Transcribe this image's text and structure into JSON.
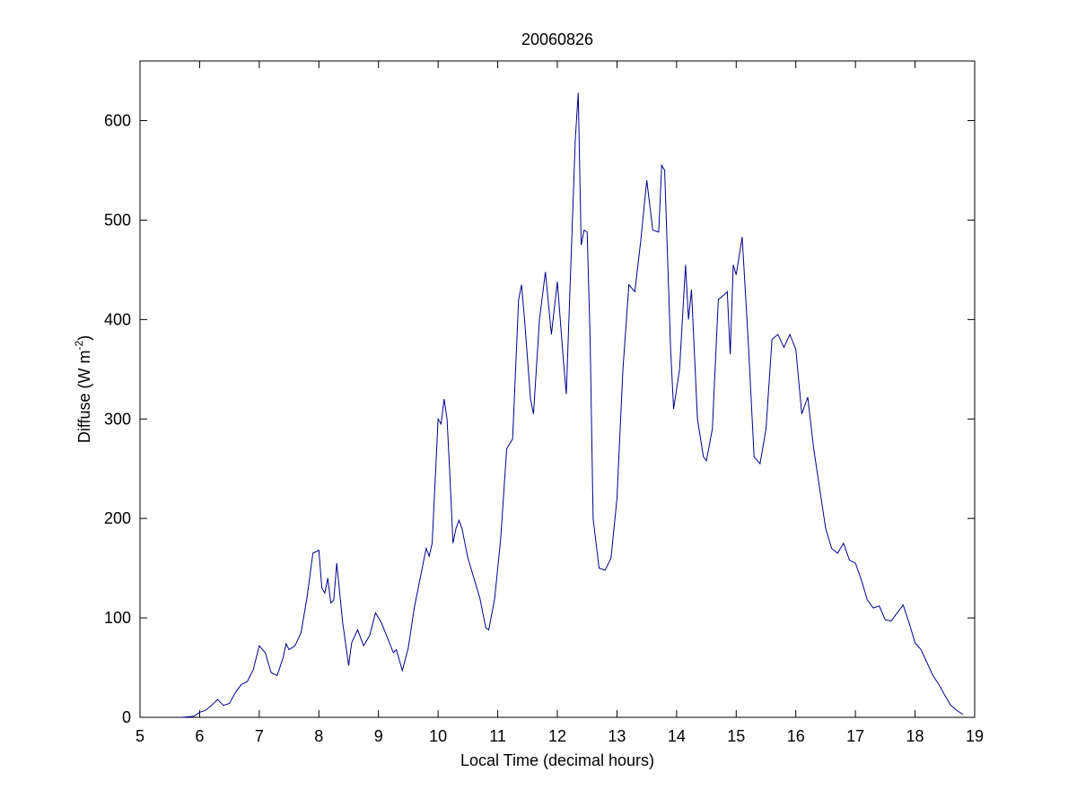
{
  "chart_data": {
    "type": "line",
    "title": "20060826",
    "xlabel": "Local Time (decimal hours)",
    "ylabel": [
      "Diffuse (W m",
      "-2",
      ")"
    ],
    "xlim": [
      5,
      19
    ],
    "xticks": [
      5,
      6,
      7,
      8,
      9,
      10,
      11,
      12,
      13,
      14,
      15,
      16,
      17,
      18,
      19
    ],
    "ylim": [
      0,
      660
    ],
    "yticks": [
      0,
      100,
      200,
      300,
      400,
      500,
      600
    ],
    "grid": false,
    "x": [
      5.7,
      5.9,
      6.0,
      6.1,
      6.2,
      6.3,
      6.4,
      6.5,
      6.6,
      6.7,
      6.8,
      6.9,
      7.0,
      7.1,
      7.2,
      7.3,
      7.4,
      7.45,
      7.5,
      7.6,
      7.7,
      7.8,
      7.9,
      8.0,
      8.05,
      8.1,
      8.15,
      8.2,
      8.25,
      8.3,
      8.35,
      8.4,
      8.5,
      8.55,
      8.65,
      8.75,
      8.85,
      8.95,
      9.05,
      9.15,
      9.25,
      9.3,
      9.4,
      9.5,
      9.6,
      9.7,
      9.8,
      9.85,
      9.9,
      10.0,
      10.05,
      10.1,
      10.15,
      10.2,
      10.25,
      10.3,
      10.35,
      10.4,
      10.5,
      10.6,
      10.7,
      10.8,
      10.85,
      10.95,
      11.05,
      11.15,
      11.25,
      11.35,
      11.4,
      11.45,
      11.55,
      11.6,
      11.7,
      11.8,
      11.9,
      12.0,
      12.1,
      12.15,
      12.3,
      12.35,
      12.4,
      12.45,
      12.5,
      12.55,
      12.6,
      12.7,
      12.8,
      12.9,
      13.0,
      13.1,
      13.2,
      13.3,
      13.4,
      13.5,
      13.6,
      13.7,
      13.75,
      13.8,
      13.9,
      13.95,
      14.05,
      14.15,
      14.2,
      14.25,
      14.35,
      14.45,
      14.5,
      14.6,
      14.7,
      14.8,
      14.85,
      14.9,
      14.95,
      15.0,
      15.1,
      15.2,
      15.3,
      15.4,
      15.5,
      15.6,
      15.7,
      15.8,
      15.9,
      16.0,
      16.1,
      16.2,
      16.3,
      16.4,
      16.5,
      16.6,
      16.7,
      16.8,
      16.9,
      17.0,
      17.1,
      17.2,
      17.3,
      17.4,
      17.5,
      17.6,
      17.7,
      17.8,
      17.9,
      18.0,
      18.1,
      18.2,
      18.3,
      18.4,
      18.5,
      18.6,
      18.7,
      18.8
    ],
    "series": [
      {
        "color": "#00008b",
        "values": [
          0,
          1,
          5,
          7,
          12,
          18,
          12,
          14,
          25,
          33,
          36,
          48,
          72,
          65,
          45,
          42,
          60,
          74,
          68,
          72,
          85,
          120,
          165,
          168,
          130,
          125,
          140,
          115,
          118,
          155,
          125,
          95,
          52,
          75,
          88,
          72,
          82,
          105,
          95,
          80,
          65,
          68,
          47,
          70,
          110,
          140,
          170,
          162,
          175,
          300,
          295,
          320,
          300,
          240,
          175,
          190,
          198,
          190,
          160,
          140,
          120,
          90,
          88,
          120,
          180,
          270,
          280,
          420,
          435,
          400,
          320,
          305,
          400,
          448,
          385,
          438,
          360,
          325,
          580,
          628,
          475,
          490,
          488,
          380,
          200,
          150,
          148,
          160,
          220,
          350,
          435,
          428,
          480,
          540,
          490,
          488,
          555,
          550,
          370,
          310,
          350,
          455,
          400,
          430,
          300,
          262,
          258,
          290,
          420,
          425,
          428,
          365,
          455,
          445,
          483,
          380,
          262,
          255,
          290,
          380,
          385,
          372,
          385,
          370,
          305,
          322,
          270,
          230,
          190,
          170,
          165,
          175,
          158,
          155,
          138,
          118,
          110,
          112,
          98,
          97,
          105,
          113,
          95,
          75,
          68,
          55,
          42,
          33,
          22,
          12,
          7,
          3
        ]
      }
    ]
  }
}
